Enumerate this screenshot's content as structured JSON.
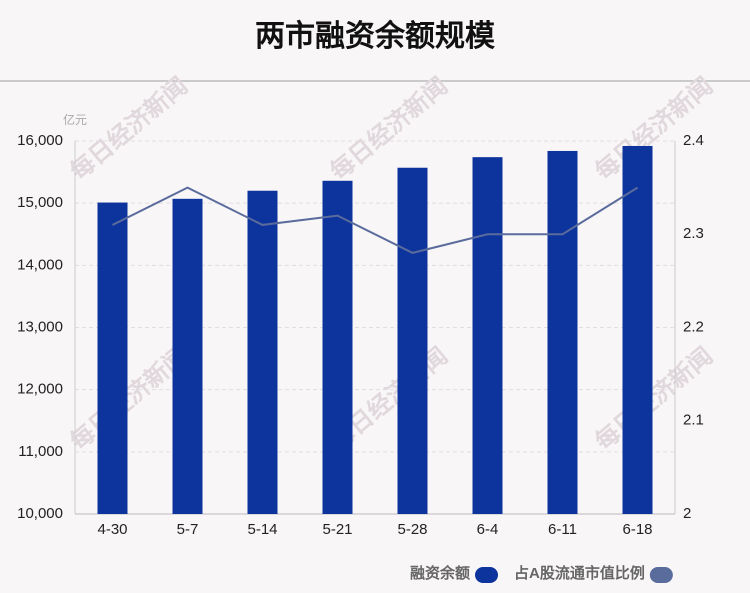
{
  "chart_data": {
    "type": "bar-line",
    "title": "两市融资余额规模",
    "y_unit": "亿元",
    "watermark": "每日经济新闻",
    "categories": [
      "4-30",
      "5-7",
      "5-14",
      "5-21",
      "5-28",
      "6-4",
      "6-11",
      "6-18"
    ],
    "series": [
      {
        "name": "融资余额",
        "type": "bar",
        "color": "#0d339c",
        "values": [
          15010,
          15070,
          15200,
          15360,
          15570,
          15740,
          15840,
          15920
        ]
      },
      {
        "name": "占A股流通市值比例",
        "type": "line",
        "axis": "y2",
        "color": "#5a6c9c",
        "values": [
          2.31,
          2.35,
          2.31,
          2.32,
          2.28,
          2.3,
          2.3,
          2.35
        ]
      }
    ],
    "ylim": [
      10000,
      16000
    ],
    "yticks": [
      {
        "value": 10000,
        "label": "10,000"
      },
      {
        "value": 11000,
        "label": "11,000"
      },
      {
        "value": 12000,
        "label": "12,000"
      },
      {
        "value": 13000,
        "label": "13,000"
      },
      {
        "value": 14000,
        "label": "14,000"
      },
      {
        "value": 15000,
        "label": "15,000"
      },
      {
        "value": 16000,
        "label": "16,000"
      }
    ],
    "y2lim": [
      2,
      2.4
    ],
    "y2ticks": [
      2,
      2.1,
      2.2,
      2.3,
      2.4
    ],
    "grid": true
  }
}
